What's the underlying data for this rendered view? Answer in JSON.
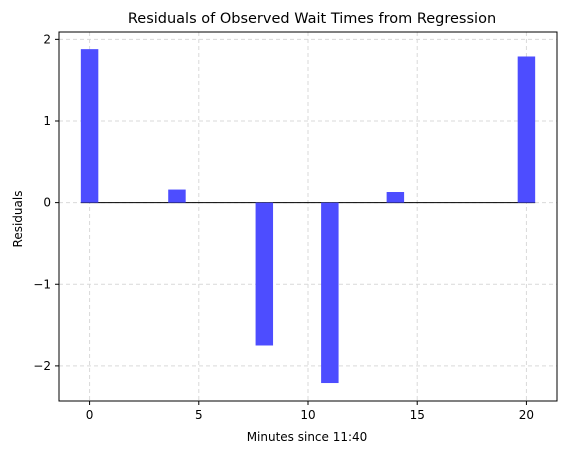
{
  "chart_data": {
    "type": "bar",
    "title": "Residuals of Observed Wait Times from Regression",
    "xlabel": "Minutes since 11:40",
    "ylabel": "Residuals",
    "x": [
      0,
      4,
      8,
      11,
      14,
      20
    ],
    "values": [
      1.88,
      0.16,
      -1.75,
      -2.21,
      0.13,
      1.79
    ],
    "bar_width": 0.8,
    "xlim": [
      -1.4,
      21.4
    ],
    "ylim": [
      -2.43,
      2.09
    ],
    "xticks": [
      0,
      5,
      10,
      15,
      20
    ],
    "yticks": [
      -2,
      -1,
      0,
      1,
      2
    ],
    "xtick_labels": [
      "0",
      "5",
      "10",
      "15",
      "20"
    ],
    "ytick_labels": [
      "−2",
      "−1",
      "0",
      "1",
      "2"
    ],
    "grid": true,
    "grid_style": "dashed",
    "zero_line": true,
    "colors": {
      "bar": "#4d4dff",
      "grid": "#d9d9d9",
      "axis": "#000000",
      "zero_line": "#000000"
    }
  }
}
